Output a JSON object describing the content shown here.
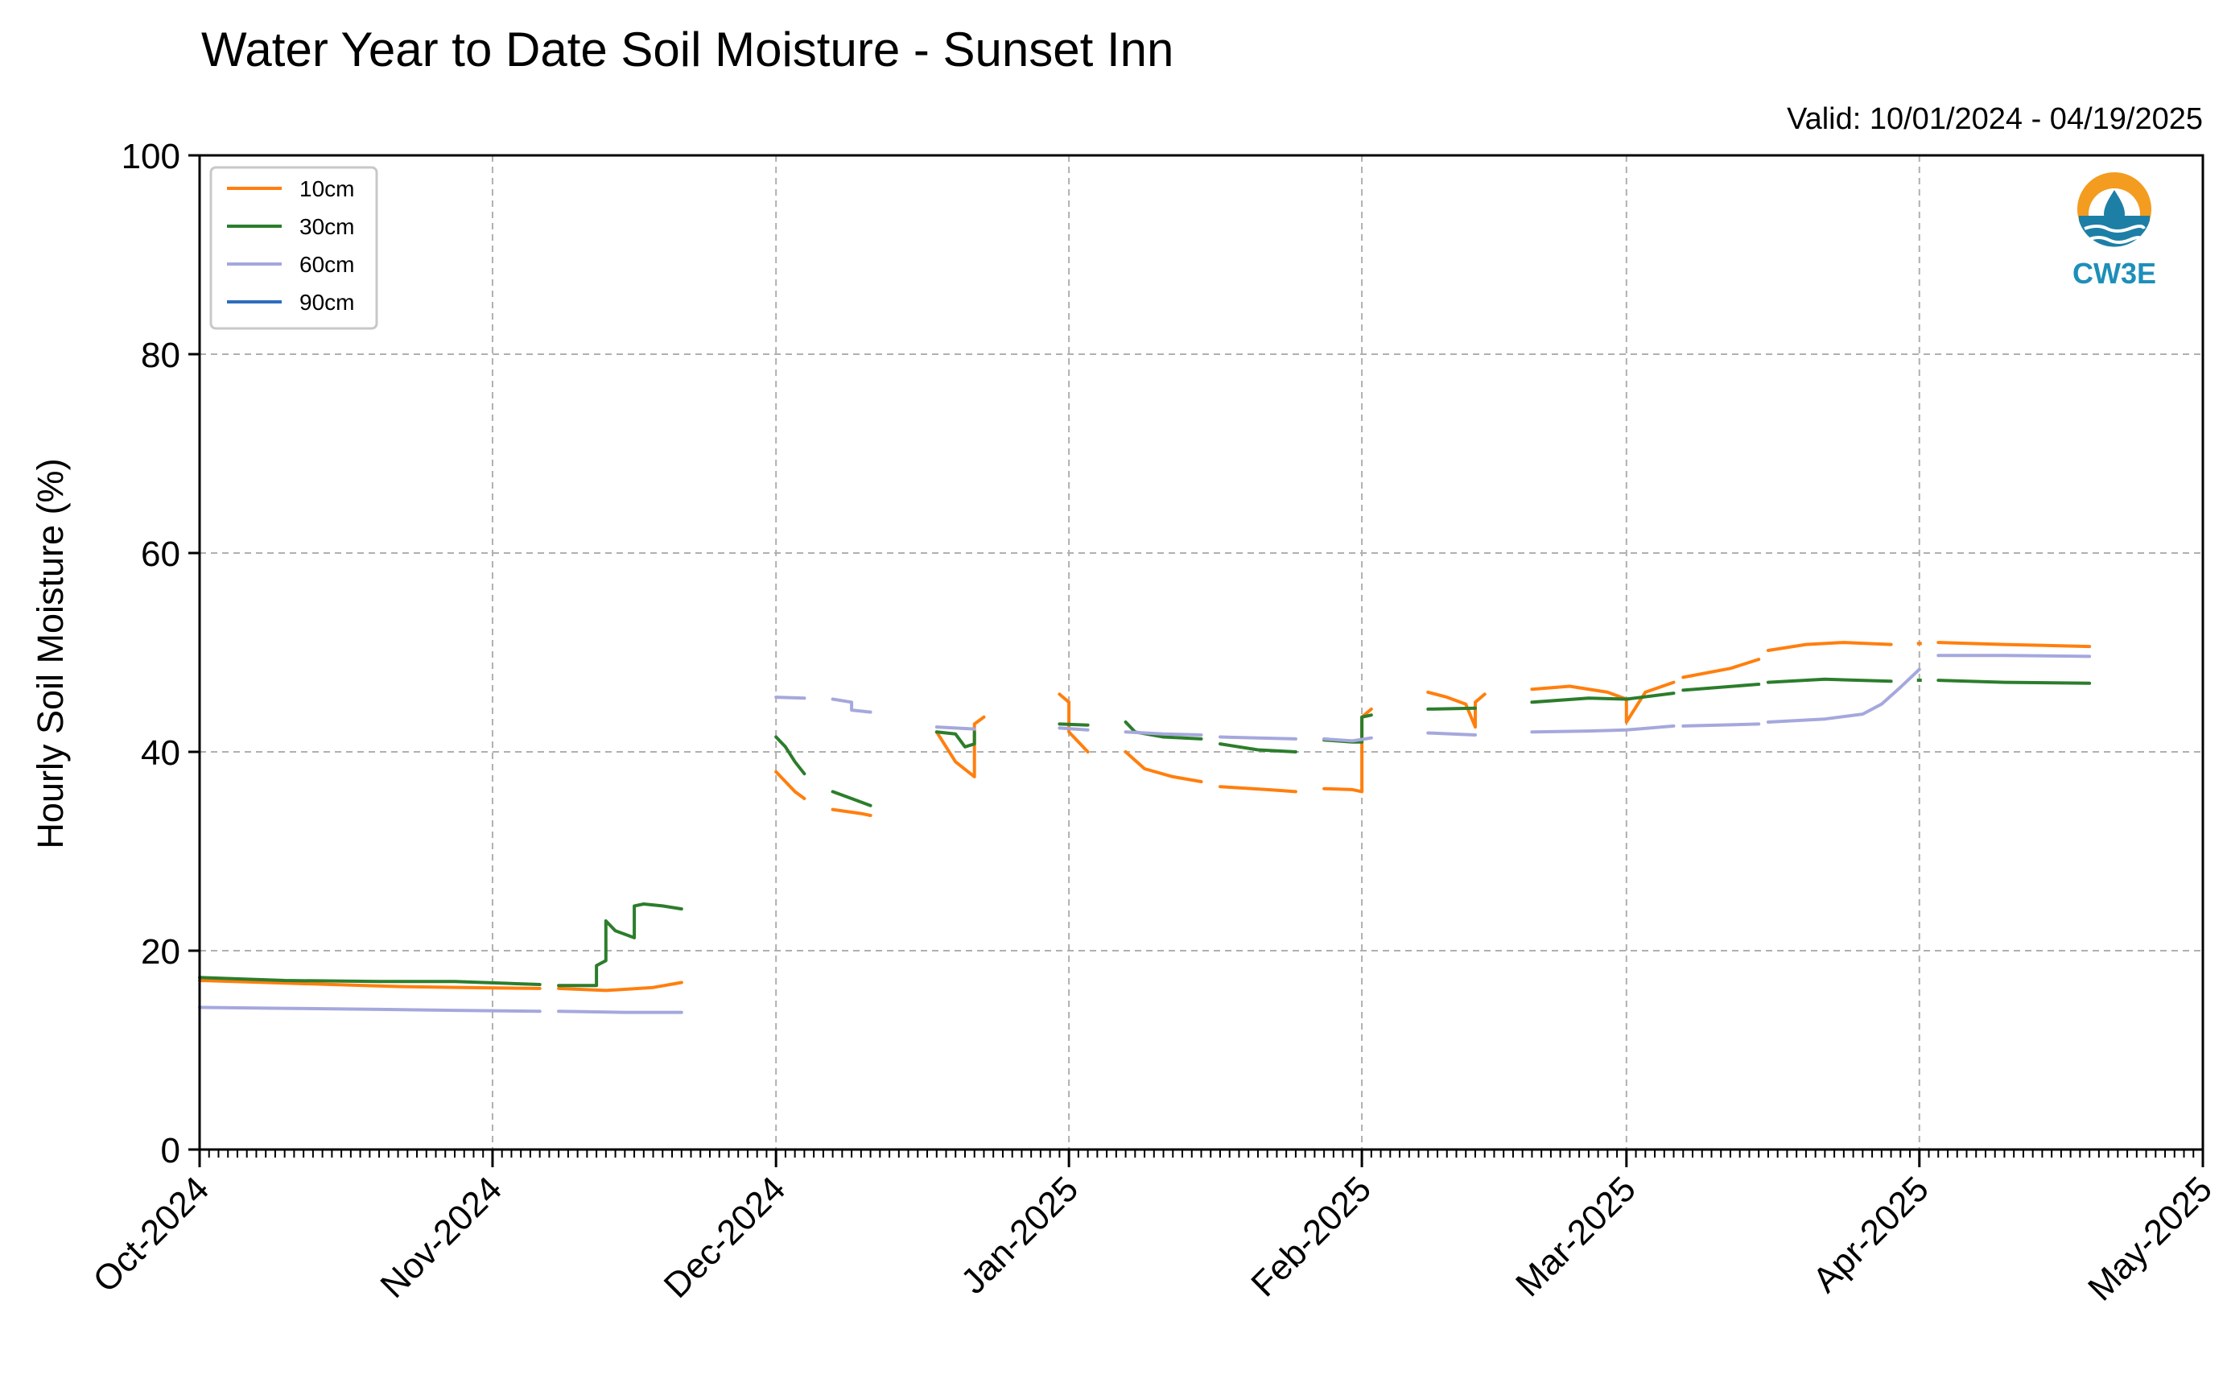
{
  "chart_data": {
    "type": "line",
    "title": "Water Year to Date Soil Moisture - Sunset Inn",
    "subtitle": "Valid: 10/01/2024 - 04/19/2025",
    "xlabel": "",
    "ylabel": "Hourly Soil Moisture (%)",
    "xlim": [
      "2024-10-01",
      "2025-05-01"
    ],
    "ylim": [
      0,
      100
    ],
    "yticks": [
      0,
      20,
      40,
      60,
      80,
      100
    ],
    "xticks": [
      {
        "date": "2024-10-01",
        "label": "Oct-2024"
      },
      {
        "date": "2024-11-01",
        "label": "Nov-2024"
      },
      {
        "date": "2024-12-01",
        "label": "Dec-2024"
      },
      {
        "date": "2025-01-01",
        "label": "Jan-2025"
      },
      {
        "date": "2025-02-01",
        "label": "Feb-2025"
      },
      {
        "date": "2025-03-01",
        "label": "Mar-2025"
      },
      {
        "date": "2025-04-01",
        "label": "Apr-2025"
      },
      {
        "date": "2025-05-01",
        "label": "May-2025"
      }
    ],
    "grid": true,
    "legend_position": "top-left",
    "logo_text": "CW3E",
    "series": [
      {
        "name": "10cm",
        "color": "#ff7f0e",
        "segments": [
          [
            [
              "2024-10-01",
              17.0
            ],
            [
              "2024-10-08",
              16.8
            ],
            [
              "2024-10-15",
              16.6
            ],
            [
              "2024-10-22",
              16.4
            ],
            [
              "2024-10-29",
              16.3
            ],
            [
              "2024-11-06",
              16.2
            ]
          ],
          [
            [
              "2024-11-08",
              16.2
            ],
            [
              "2024-11-13",
              16.0
            ],
            [
              "2024-11-18",
              16.3
            ],
            [
              "2024-11-21",
              16.8
            ]
          ],
          [
            [
              "2024-12-01",
              38.0
            ],
            [
              "2024-12-03",
              36.0
            ],
            [
              "2024-12-04",
              35.3
            ]
          ],
          [
            [
              "2024-12-07",
              34.2
            ],
            [
              "2024-12-10",
              33.8
            ],
            [
              "2024-12-11",
              33.6
            ]
          ],
          [
            [
              "2024-12-18",
              42.0
            ],
            [
              "2024-12-20",
              39.0
            ],
            [
              "2024-12-22",
              37.5
            ],
            [
              "2024-12-22",
              42.8
            ],
            [
              "2024-12-23",
              43.5
            ]
          ],
          [
            [
              "2024-12-31",
              45.8
            ],
            [
              "2025-01-01",
              45.0
            ],
            [
              "2025-01-01",
              42.0
            ],
            [
              "2025-01-03",
              40.0
            ]
          ],
          [
            [
              "2025-01-07",
              40.0
            ],
            [
              "2025-01-09",
              38.3
            ],
            [
              "2025-01-12",
              37.5
            ],
            [
              "2025-01-15",
              37.0
            ]
          ],
          [
            [
              "2025-01-17",
              36.5
            ],
            [
              "2025-01-22",
              36.2
            ],
            [
              "2025-01-25",
              36.0
            ]
          ],
          [
            [
              "2025-01-28",
              36.3
            ],
            [
              "2025-01-31",
              36.2
            ],
            [
              "2025-02-01",
              36.0
            ],
            [
              "2025-02-01",
              43.5
            ],
            [
              "2025-02-02",
              44.3
            ]
          ],
          [
            [
              "2025-02-08",
              46.0
            ],
            [
              "2025-02-10",
              45.5
            ],
            [
              "2025-02-12",
              44.8
            ],
            [
              "2025-02-13",
              42.5
            ],
            [
              "2025-02-13",
              45.0
            ],
            [
              "2025-02-14",
              45.8
            ]
          ],
          [
            [
              "2025-02-19",
              46.3
            ],
            [
              "2025-02-23",
              46.6
            ],
            [
              "2025-02-27",
              46.0
            ],
            [
              "2025-03-01",
              45.3
            ],
            [
              "2025-03-01",
              43.0
            ],
            [
              "2025-03-03",
              46.0
            ],
            [
              "2025-03-06",
              47.0
            ]
          ],
          [
            [
              "2025-03-07",
              47.5
            ],
            [
              "2025-03-12",
              48.4
            ],
            [
              "2025-03-15",
              49.3
            ]
          ],
          [
            [
              "2025-03-16",
              50.2
            ],
            [
              "2025-03-20",
              50.8
            ],
            [
              "2025-03-24",
              51.0
            ],
            [
              "2025-03-29",
              50.8
            ]
          ],
          [
            [
              "2025-04-01",
              50.9
            ]
          ],
          [
            [
              "2025-04-03",
              51.0
            ],
            [
              "2025-04-10",
              50.8
            ],
            [
              "2025-04-19",
              50.6
            ]
          ]
        ]
      },
      {
        "name": "30cm",
        "color": "#2c7d2c",
        "segments": [
          [
            [
              "2024-10-01",
              17.3
            ],
            [
              "2024-10-10",
              17.0
            ],
            [
              "2024-10-20",
              16.9
            ],
            [
              "2024-10-28",
              16.9
            ],
            [
              "2024-11-06",
              16.6
            ]
          ],
          [
            [
              "2024-11-08",
              16.5
            ],
            [
              "2024-11-12",
              16.5
            ],
            [
              "2024-11-12",
              18.5
            ],
            [
              "2024-11-13",
              19.0
            ],
            [
              "2024-11-13",
              23.0
            ],
            [
              "2024-11-14",
              22.0
            ],
            [
              "2024-11-16",
              21.3
            ],
            [
              "2024-11-16",
              24.5
            ],
            [
              "2024-11-17",
              24.7
            ],
            [
              "2024-11-19",
              24.5
            ],
            [
              "2024-11-21",
              24.2
            ]
          ],
          [
            [
              "2024-12-01",
              41.5
            ],
            [
              "2024-12-02",
              40.5
            ],
            [
              "2024-12-03",
              39.0
            ],
            [
              "2024-12-04",
              37.8
            ]
          ],
          [
            [
              "2024-12-07",
              36.0
            ],
            [
              "2024-12-09",
              35.3
            ],
            [
              "2024-12-11",
              34.6
            ]
          ],
          [
            [
              "2024-12-18",
              42.0
            ],
            [
              "2024-12-20",
              41.8
            ],
            [
              "2024-12-21",
              40.5
            ],
            [
              "2024-12-22",
              40.8
            ],
            [
              "2024-12-22",
              42.0
            ]
          ],
          [
            [
              "2024-12-31",
              42.8
            ],
            [
              "2025-01-03",
              42.7
            ]
          ],
          [
            [
              "2025-01-07",
              43.0
            ],
            [
              "2025-01-08",
              42.0
            ],
            [
              "2025-01-11",
              41.5
            ],
            [
              "2025-01-15",
              41.3
            ]
          ],
          [
            [
              "2025-01-17",
              40.8
            ],
            [
              "2025-01-21",
              40.2
            ],
            [
              "2025-01-25",
              40.0
            ]
          ],
          [
            [
              "2025-01-28",
              41.2
            ],
            [
              "2025-01-31",
              41.0
            ],
            [
              "2025-02-01",
              41.0
            ],
            [
              "2025-02-01",
              43.5
            ],
            [
              "2025-02-02",
              43.7
            ]
          ],
          [
            [
              "2025-02-08",
              44.3
            ],
            [
              "2025-02-13",
              44.4
            ]
          ],
          [
            [
              "2025-02-19",
              45.0
            ],
            [
              "2025-02-25",
              45.4
            ],
            [
              "2025-03-01",
              45.3
            ],
            [
              "2025-03-06",
              45.9
            ]
          ],
          [
            [
              "2025-03-07",
              46.2
            ],
            [
              "2025-03-15",
              46.8
            ]
          ],
          [
            [
              "2025-03-16",
              47.0
            ],
            [
              "2025-03-22",
              47.3
            ],
            [
              "2025-03-29",
              47.1
            ]
          ],
          [
            [
              "2025-04-01",
              47.2
            ]
          ],
          [
            [
              "2025-04-03",
              47.2
            ],
            [
              "2025-04-10",
              47.0
            ],
            [
              "2025-04-19",
              46.9
            ]
          ]
        ]
      },
      {
        "name": "60cm",
        "color": "#a5a8dc",
        "segments": [
          [
            [
              "2024-10-01",
              14.3
            ],
            [
              "2024-10-10",
              14.2
            ],
            [
              "2024-10-20",
              14.1
            ],
            [
              "2024-10-28",
              14.0
            ],
            [
              "2024-11-06",
              13.9
            ]
          ],
          [
            [
              "2024-11-08",
              13.9
            ],
            [
              "2024-11-15",
              13.8
            ],
            [
              "2024-11-21",
              13.8
            ]
          ],
          [
            [
              "2024-12-01",
              45.5
            ],
            [
              "2024-12-04",
              45.4
            ]
          ],
          [
            [
              "2024-12-07",
              45.3
            ],
            [
              "2024-12-09",
              45.0
            ],
            [
              "2024-12-09",
              44.2
            ],
            [
              "2024-12-11",
              44.0
            ]
          ],
          [
            [
              "2024-12-18",
              42.5
            ],
            [
              "2024-12-22",
              42.3
            ]
          ],
          [
            [
              "2024-12-31",
              42.4
            ],
            [
              "2025-01-03",
              42.2
            ]
          ],
          [
            [
              "2025-01-07",
              42.0
            ],
            [
              "2025-01-11",
              41.8
            ],
            [
              "2025-01-15",
              41.7
            ]
          ],
          [
            [
              "2025-01-17",
              41.5
            ],
            [
              "2025-01-21",
              41.4
            ],
            [
              "2025-01-25",
              41.3
            ]
          ],
          [
            [
              "2025-01-28",
              41.3
            ],
            [
              "2025-01-31",
              41.1
            ],
            [
              "2025-02-02",
              41.4
            ]
          ],
          [
            [
              "2025-02-08",
              41.9
            ],
            [
              "2025-02-13",
              41.7
            ]
          ],
          [
            [
              "2025-02-19",
              42.0
            ],
            [
              "2025-02-25",
              42.1
            ],
            [
              "2025-03-01",
              42.2
            ],
            [
              "2025-03-06",
              42.6
            ]
          ],
          [
            [
              "2025-03-07",
              42.6
            ],
            [
              "2025-03-15",
              42.8
            ]
          ],
          [
            [
              "2025-03-16",
              43.0
            ],
            [
              "2025-03-22",
              43.3
            ],
            [
              "2025-03-26",
              43.8
            ],
            [
              "2025-03-28",
              44.8
            ],
            [
              "2025-03-30",
              46.5
            ],
            [
              "2025-04-01",
              48.3
            ]
          ],
          [
            [
              "2025-04-03",
              49.7
            ],
            [
              "2025-04-10",
              49.7
            ],
            [
              "2025-04-19",
              49.6
            ]
          ]
        ]
      },
      {
        "name": "90cm",
        "color": "#2e6dbe",
        "segments": []
      }
    ]
  }
}
